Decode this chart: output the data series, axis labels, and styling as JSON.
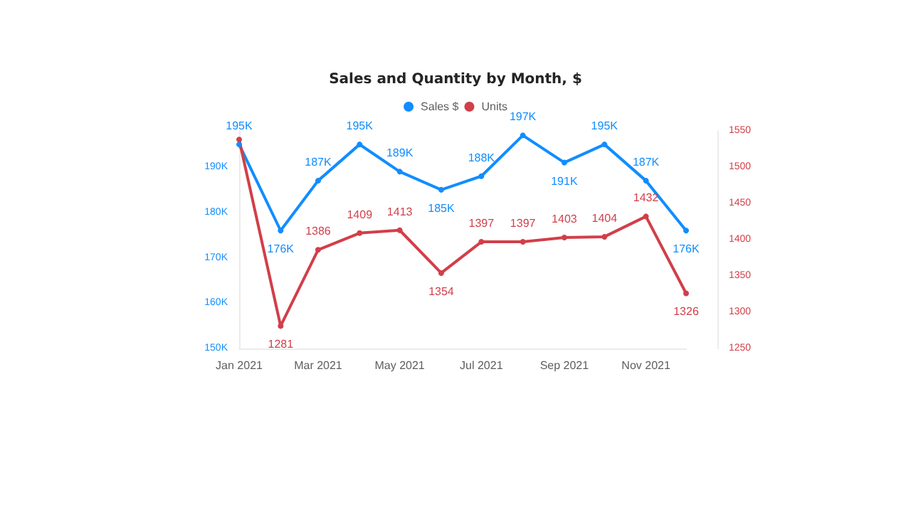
{
  "chart_data": {
    "type": "line",
    "title": "Sales and Quantity by Month, $",
    "x": [
      "2021-01",
      "2021-02",
      "2021-03",
      "2021-04",
      "2021-05",
      "2021-06",
      "2021-07",
      "2021-08",
      "2021-09",
      "2021-10",
      "2021-11",
      "2021-12"
    ],
    "xlim": [
      "2021-01",
      "2021-12"
    ],
    "xticks": [
      {
        "value": "2021-01",
        "label": "Jan 2021"
      },
      {
        "value": "2021-03",
        "label": "Mar 2021"
      },
      {
        "value": "2021-05",
        "label": "May 2021"
      },
      {
        "value": "2021-07",
        "label": "Jul 2021"
      },
      {
        "value": "2021-09",
        "label": "Sep 2021"
      },
      {
        "value": "2021-11",
        "label": "Nov 2021"
      }
    ],
    "series": [
      {
        "name": "Sales $",
        "color": "#118dff",
        "values": [
          195000,
          176000,
          187000,
          195000,
          189000,
          185000,
          188000,
          197000,
          191000,
          195000,
          187000,
          176000
        ],
        "value_labels": [
          "195K",
          "176K",
          "187K",
          "195K",
          "189K",
          "185K",
          "188K",
          "197K",
          "191K",
          "195K",
          "187K",
          "176K"
        ]
      },
      {
        "name": "Units",
        "color": "#d13f49",
        "axis": "y2",
        "values": [
          1538,
          1281,
          1386,
          1409,
          1413,
          1354,
          1397,
          1397,
          1403,
          1404,
          1432,
          1326
        ],
        "value_labels": [
          null,
          "1281",
          "1386",
          "1409",
          "1413",
          "1354",
          "1397",
          "1397",
          "1403",
          "1404",
          "1432",
          "1326"
        ]
      }
    ],
    "ylim": [
      150000,
      198000
    ],
    "yticks": [
      {
        "value": 150000,
        "label": "150K"
      },
      {
        "value": 160000,
        "label": "160K"
      },
      {
        "value": 170000,
        "label": "170K"
      },
      {
        "value": 180000,
        "label": "180K"
      },
      {
        "value": 190000,
        "label": "190K"
      }
    ],
    "y2lim": [
      1250,
      1550
    ],
    "y2ticks": [
      1250,
      1300,
      1350,
      1400,
      1450,
      1500,
      1550
    ],
    "legend": "top",
    "grid": false,
    "marker": "circle",
    "line_style": "solid"
  }
}
